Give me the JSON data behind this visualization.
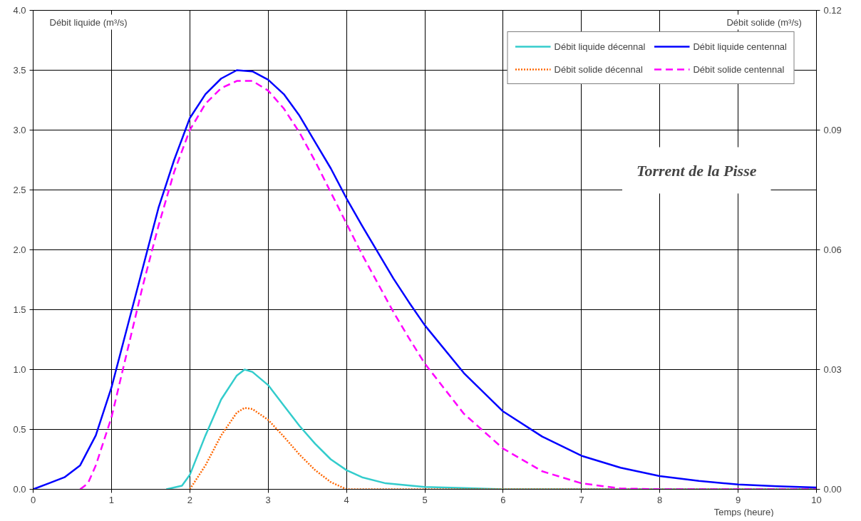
{
  "chart_data": {
    "type": "line",
    "xlabel": "Temps (heure)",
    "ylabel": "Débit liquide  (m³/s)",
    "y2label": "Débit solide  (m³/s)",
    "annotations": [
      "Torrent de la Pisse"
    ],
    "xlim": [
      0,
      10
    ],
    "xticks": [
      0,
      1,
      2,
      3,
      4,
      5,
      6,
      7,
      8,
      9,
      10
    ],
    "ylim": [
      0,
      4
    ],
    "yticks": [
      {
        "value": 0,
        "label": "0.0"
      },
      {
        "value": 0.5,
        "label": "0.5"
      },
      {
        "value": 1,
        "label": "1.0"
      },
      {
        "value": 1.5,
        "label": "1.5"
      },
      {
        "value": 2,
        "label": "2.0"
      },
      {
        "value": 2.5,
        "label": "2.5"
      },
      {
        "value": 3,
        "label": "3.0"
      },
      {
        "value": 3.5,
        "label": "3.5"
      },
      {
        "value": 4,
        "label": "4.0"
      }
    ],
    "y2lim": [
      0,
      0.12
    ],
    "y2ticks": [
      {
        "value": 0,
        "label": "0.00"
      },
      {
        "value": 0.03,
        "label": "0.03"
      },
      {
        "value": 0.06,
        "label": "0.06"
      },
      {
        "value": 0.09,
        "label": "0.09"
      },
      {
        "value": 0.12,
        "label": "0.12"
      }
    ],
    "grid": true,
    "legend": "top right",
    "marker": "none",
    "series": [
      {
        "name": "Débit liquide décennal",
        "color": "#33cccc",
        "line_style": "solid",
        "x": [
          1.7,
          1.9,
          2.0,
          2.2,
          2.4,
          2.6,
          2.7,
          2.8,
          3.0,
          3.2,
          3.4,
          3.6,
          3.8,
          4.0,
          4.2,
          4.5,
          5.0,
          5.5,
          6.0,
          7.0,
          10.0
        ],
        "values": [
          0,
          0.03,
          0.12,
          0.45,
          0.75,
          0.95,
          1.0,
          0.98,
          0.87,
          0.7,
          0.53,
          0.38,
          0.25,
          0.16,
          0.1,
          0.05,
          0.02,
          0.01,
          0,
          0,
          0
        ]
      },
      {
        "name": "Débit liquide centennal",
        "color": "#0000ff",
        "line_style": "solid",
        "x": [
          0,
          0.2,
          0.4,
          0.6,
          0.8,
          1.0,
          1.2,
          1.4,
          1.6,
          1.8,
          2.0,
          2.2,
          2.4,
          2.6,
          2.8,
          3.0,
          3.2,
          3.4,
          3.6,
          3.8,
          4.0,
          4.2,
          4.4,
          4.6,
          4.8,
          5.0,
          5.5,
          6.0,
          6.5,
          7.0,
          7.5,
          8.0,
          8.5,
          9.0,
          9.5,
          10.0
        ],
        "values": [
          0,
          0.05,
          0.1,
          0.2,
          0.45,
          0.85,
          1.35,
          1.85,
          2.35,
          2.75,
          3.1,
          3.3,
          3.43,
          3.5,
          3.49,
          3.42,
          3.3,
          3.12,
          2.9,
          2.68,
          2.43,
          2.2,
          1.98,
          1.76,
          1.56,
          1.37,
          0.97,
          0.65,
          0.44,
          0.28,
          0.18,
          0.11,
          0.07,
          0.04,
          0.025,
          0.015
        ]
      },
      {
        "name": "Débit solide décennal",
        "color": "#ff6600",
        "line_style": "dotted",
        "axis": "y2",
        "x": [
          2.0,
          2.2,
          2.4,
          2.6,
          2.7,
          2.8,
          3.0,
          3.2,
          3.4,
          3.6,
          3.8,
          4.0,
          10.0
        ],
        "values": [
          0,
          0.006,
          0.0135,
          0.0192,
          0.0204,
          0.0201,
          0.0174,
          0.0132,
          0.0087,
          0.0048,
          0.0018,
          0,
          0
        ]
      },
      {
        "name": "Débit solide centennal",
        "color": "#ff00ff",
        "line_style": "dashed",
        "axis": "y2",
        "x": [
          0.6,
          0.7,
          0.8,
          1.0,
          1.2,
          1.4,
          1.6,
          1.8,
          2.0,
          2.2,
          2.4,
          2.6,
          2.8,
          3.0,
          3.2,
          3.4,
          3.6,
          3.8,
          4.0,
          4.2,
          4.4,
          4.6,
          4.8,
          5.0,
          5.5,
          6.0,
          6.5,
          7.0,
          7.5,
          8.0,
          10.0
        ],
        "values": [
          0,
          0.0015,
          0.006,
          0.018,
          0.0345,
          0.051,
          0.066,
          0.0795,
          0.09,
          0.0966,
          0.1005,
          0.1023,
          0.1023,
          0.0999,
          0.0954,
          0.0894,
          0.0822,
          0.0744,
          0.0666,
          0.0588,
          0.0516,
          0.0444,
          0.0378,
          0.0315,
          0.0189,
          0.0102,
          0.0045,
          0.0015,
          0.0002,
          0,
          0
        ]
      }
    ]
  }
}
